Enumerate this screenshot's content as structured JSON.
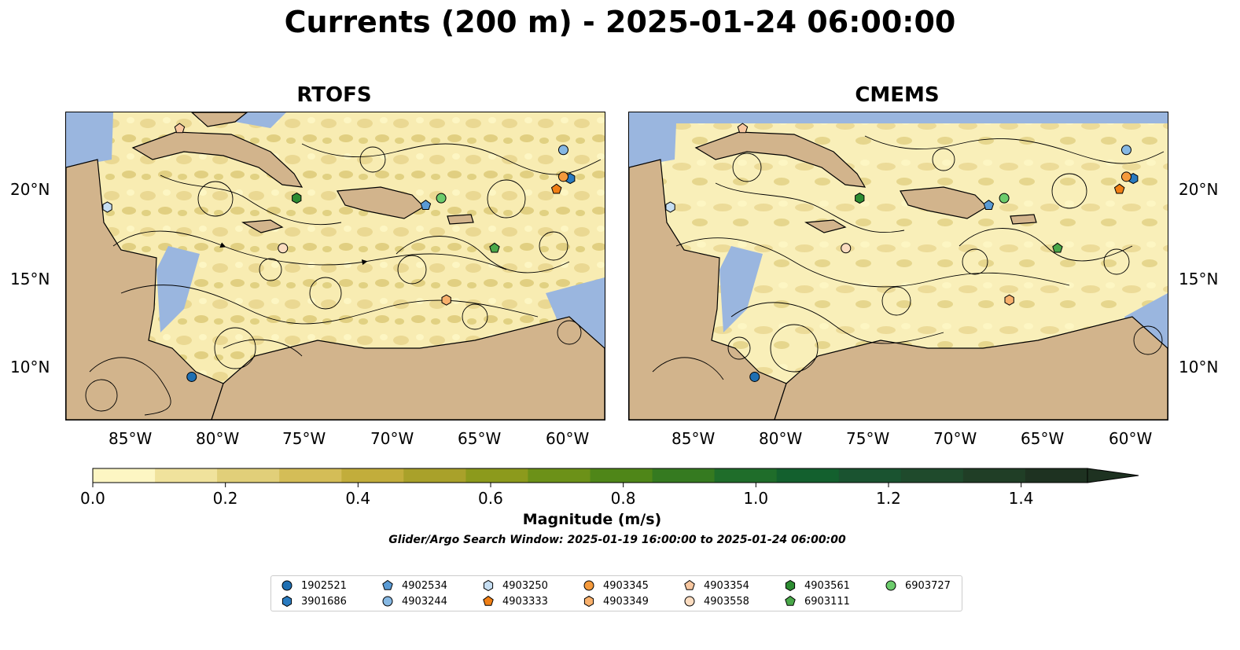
{
  "title": "Currents (200 m) - 2025-01-24 06:00:00",
  "panels": [
    {
      "title": "RTOFS"
    },
    {
      "title": "CMEMS"
    }
  ],
  "axes": {
    "lon_ticks": [
      "85°W",
      "80°W",
      "75°W",
      "70°W",
      "65°W",
      "60°W"
    ],
    "lat_ticks": [
      "20°N",
      "15°N",
      "10°N"
    ]
  },
  "colorbar": {
    "label": "Magnitude (m/s)",
    "ticks": [
      "0.0",
      "0.2",
      "0.4",
      "0.6",
      "0.8",
      "1.0",
      "1.2",
      "1.4"
    ],
    "range": [
      0,
      1.5
    ],
    "extend": "max",
    "colors": [
      "#fdf6c3",
      "#f0e29c",
      "#e1cf79",
      "#d4bd57",
      "#c2ad3b",
      "#a9a12a",
      "#8c9a1c",
      "#6c9118",
      "#4f8618",
      "#357a20",
      "#1f6d2a",
      "#13602e",
      "#1a5330",
      "#1f4a2c",
      "#203e26",
      "#1e3221"
    ]
  },
  "search_window": "Glider/Argo Search Window: 2025-01-19 16:00:00 to 2025-01-24 06:00:00",
  "legend": {
    "items": [
      {
        "label": "1902521",
        "marker": "circle",
        "color": "#1f6fb2"
      },
      {
        "label": "3901686",
        "marker": "hexagon",
        "color": "#2a7bc0"
      },
      {
        "label": "4902534",
        "marker": "pentagon",
        "color": "#5a9bd5"
      },
      {
        "label": "4903244",
        "marker": "circle",
        "color": "#86b8e3"
      },
      {
        "label": "4903250",
        "marker": "hexagon",
        "color": "#c6def2"
      },
      {
        "label": "4903333",
        "marker": "pentagon",
        "color": "#f07f15"
      },
      {
        "label": "4903345",
        "marker": "circle",
        "color": "#f59a3c"
      },
      {
        "label": "4903349",
        "marker": "hexagon",
        "color": "#f8b06c"
      },
      {
        "label": "4903354",
        "marker": "pentagon",
        "color": "#f8c7a0"
      },
      {
        "label": "4903558",
        "marker": "circle",
        "color": "#fbdcc0"
      },
      {
        "label": "4903561",
        "marker": "hexagon",
        "color": "#2d8c32"
      },
      {
        "label": "6903111",
        "marker": "pentagon",
        "color": "#4aa84a"
      },
      {
        "label": "6903727",
        "marker": "circle",
        "color": "#6ccc6c"
      }
    ]
  },
  "floats": {
    "RTOFS": [
      {
        "id": "1902521",
        "lon": -82.2,
        "lat": 9.6
      },
      {
        "id": "3901686",
        "lon": -60.2,
        "lat": 20.7
      },
      {
        "id": "4902534",
        "lon": -68.6,
        "lat": 19.2
      },
      {
        "id": "4903244",
        "lon": -60.6,
        "lat": 22.3
      },
      {
        "id": "4903250",
        "lon": -87.1,
        "lat": 19.1
      },
      {
        "id": "4903333",
        "lon": -61.0,
        "lat": 20.1
      },
      {
        "id": "4903345",
        "lon": -60.6,
        "lat": 20.8
      },
      {
        "id": "4903349",
        "lon": -67.4,
        "lat": 13.9
      },
      {
        "id": "4903354",
        "lon": -82.9,
        "lat": 23.5
      },
      {
        "id": "4903558",
        "lon": -76.9,
        "lat": 16.8
      },
      {
        "id": "4903561",
        "lon": -76.1,
        "lat": 19.6
      },
      {
        "id": "6903111",
        "lon": -64.6,
        "lat": 16.8
      },
      {
        "id": "6903727",
        "lon": -67.7,
        "lat": 19.6
      }
    ],
    "CMEMS": [
      {
        "id": "1902521",
        "lon": -82.2,
        "lat": 9.6
      },
      {
        "id": "3901686",
        "lon": -60.2,
        "lat": 20.7
      },
      {
        "id": "4902534",
        "lon": -68.6,
        "lat": 19.2
      },
      {
        "id": "4903244",
        "lon": -60.6,
        "lat": 22.3
      },
      {
        "id": "4903250",
        "lon": -87.1,
        "lat": 19.1
      },
      {
        "id": "4903333",
        "lon": -61.0,
        "lat": 20.1
      },
      {
        "id": "4903345",
        "lon": -60.6,
        "lat": 20.8
      },
      {
        "id": "4903349",
        "lon": -67.4,
        "lat": 13.9
      },
      {
        "id": "4903354",
        "lon": -82.9,
        "lat": 23.5
      },
      {
        "id": "4903558",
        "lon": -76.9,
        "lat": 16.8
      },
      {
        "id": "4903561",
        "lon": -76.1,
        "lat": 19.6
      },
      {
        "id": "6903111",
        "lon": -64.6,
        "lat": 16.8
      },
      {
        "id": "6903727",
        "lon": -67.7,
        "lat": 19.6
      }
    ]
  }
}
